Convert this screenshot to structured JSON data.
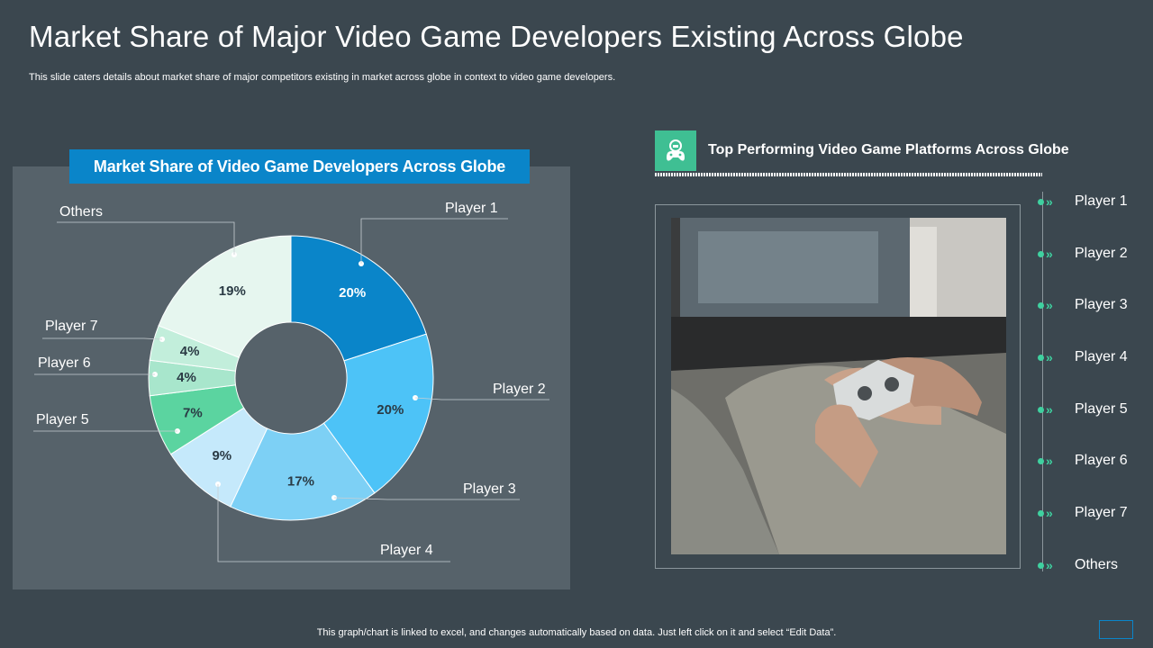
{
  "slide": {
    "title": "Market Share of Major Video Game Developers Existing Across Globe",
    "subtitle": "This slide caters details about market share of major competitors existing in market across globe in context to video game developers.",
    "footer": "This graph/chart is linked to excel,  and changes automatically based on data. Just left click on it and select “Edit Data”."
  },
  "chart_data": {
    "type": "pie",
    "title": "Market Share of Video Game Developers Across Globe",
    "categories": [
      "Player 1",
      "Player 2",
      "Player 3",
      "Player 4",
      "Player 5",
      "Player 6",
      "Player 7",
      "Others"
    ],
    "values": [
      20,
      20,
      17,
      9,
      7,
      4,
      4,
      19
    ],
    "value_labels": [
      "20%",
      "20%",
      "17%",
      "9%",
      "7%",
      "4%",
      "4%",
      "19%"
    ],
    "colors": [
      "#0a85c9",
      "#4dc3f7",
      "#7dd0f5",
      "#c5e9fb",
      "#5bd4a0",
      "#a8e6cc",
      "#c2eedb",
      "#e6f6ef"
    ],
    "label_colors": [
      "#ffffff",
      "#2a3a44",
      "#2a3a44",
      "#2a3a44",
      "#2a3a44",
      "#2a3a44",
      "#2a3a44",
      "#2a3a44"
    ],
    "donut": true
  },
  "right_panel": {
    "heading": "Top Performing Video Game Platforms Across Globe",
    "icon": "game-controller-icon",
    "photo": "person-holding-game-controller-photo",
    "accent": "#3fbf93",
    "players": [
      "Player 1",
      "Player 2",
      "Player 3",
      "Player 4",
      "Player 5",
      "Player 6",
      "Player 7",
      "Others"
    ]
  }
}
